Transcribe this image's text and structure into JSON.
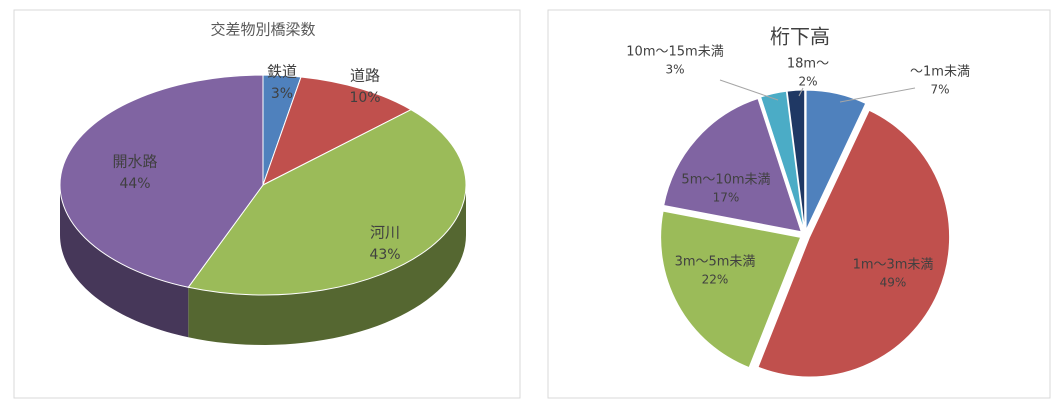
{
  "chart_data": [
    {
      "type": "pie3d",
      "title": "交差物別橋梁数",
      "categories": [
        "鉄道",
        "道路",
        "河川",
        "開水路"
      ],
      "values": [
        3,
        10,
        43,
        44
      ],
      "value_labels": [
        "3%",
        "10%",
        "43%",
        "44%"
      ],
      "colors": [
        "#4f81bd",
        "#c0504d",
        "#9bbb59",
        "#8064a2"
      ]
    },
    {
      "type": "pie",
      "title": "桁下高",
      "categories": [
        "～1m未満",
        "1m～3m未満",
        "3m～5m未満",
        "5m～10m未満",
        "10m～15m未満",
        "18m～"
      ],
      "values": [
        7,
        49,
        22,
        17,
        3,
        2
      ],
      "value_labels": [
        "7%",
        "49%",
        "22%",
        "17%",
        "3%",
        "2%"
      ],
      "colors": [
        "#4f81bd",
        "#c0504d",
        "#9bbb59",
        "#8064a2",
        "#4bacc6",
        "#1f3864"
      ]
    }
  ]
}
